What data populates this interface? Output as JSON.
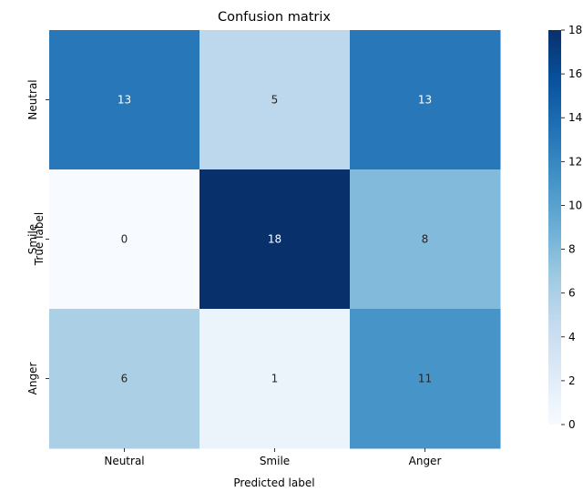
{
  "chart_data": {
    "type": "heatmap",
    "title": "Confusion matrix",
    "xlabel": "Predicted label",
    "ylabel": "True label",
    "x_categories": [
      "Neutral",
      "Smile",
      "Anger"
    ],
    "y_categories": [
      "Neutral",
      "Smile",
      "Anger"
    ],
    "values": [
      [
        13,
        5,
        13
      ],
      [
        0,
        18,
        8
      ],
      [
        6,
        1,
        11
      ]
    ],
    "colorbar": {
      "min": 0,
      "max": 18,
      "ticks": [
        "0",
        "2",
        "4",
        "6",
        "8",
        "10",
        "12",
        "14",
        "16",
        "18"
      ]
    },
    "colormap": "Blues",
    "colormap_stops": [
      "#f7fbff",
      "#deebf7",
      "#c6dbef",
      "#9ecae1",
      "#6baed6",
      "#4292c6",
      "#2171b5",
      "#08519c",
      "#08306b"
    ]
  }
}
